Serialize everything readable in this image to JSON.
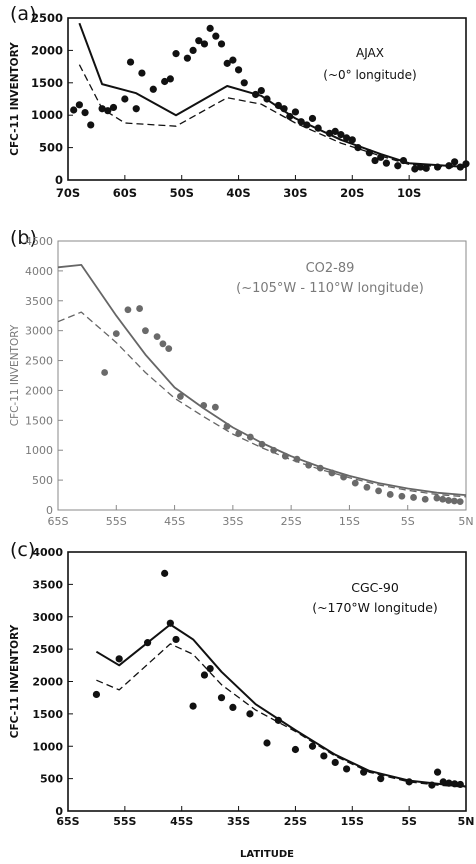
{
  "chart_data": [
    {
      "type": "line",
      "panel_label": "(a)",
      "title": "AJAX",
      "subtitle": "(~0° longitude)",
      "xlabel": "",
      "ylabel": "CFC-11 INVENTORY",
      "xlim": [
        -70,
        0
      ],
      "ylim": [
        0,
        2500
      ],
      "x_ticks": [
        -70,
        -60,
        -50,
        -40,
        -30,
        -20,
        -10
      ],
      "x_tick_labels": [
        "70S",
        "60S",
        "50S",
        "40S",
        "30S",
        "20S",
        "10S"
      ],
      "y_ticks": [
        0,
        500,
        1000,
        1500,
        2000,
        2500
      ],
      "y_tick_labels": [
        "0",
        "500",
        "1000",
        "1500",
        "2000",
        "2500"
      ],
      "grid": false,
      "style": "bold",
      "text_color": "#111111",
      "series": [
        {
          "kind": "solid",
          "x": [
            -68,
            -64,
            -58,
            -51,
            -42,
            -36,
            -30,
            -22,
            -15,
            -10,
            -5,
            0
          ],
          "y": [
            2420,
            1480,
            1340,
            1000,
            1450,
            1300,
            950,
            620,
            400,
            260,
            230,
            200
          ]
        },
        {
          "kind": "dashed",
          "x": [
            -68,
            -64,
            -60,
            -51,
            -42,
            -36,
            -30,
            -22,
            -15,
            -10,
            -5,
            0
          ],
          "y": [
            1780,
            1100,
            880,
            830,
            1270,
            1170,
            880,
            570,
            370,
            240,
            210,
            190
          ]
        },
        {
          "kind": "points",
          "x": [
            -69,
            -68,
            -67,
            -66,
            -64,
            -63,
            -62,
            -60,
            -59,
            -58,
            -57,
            -55,
            -53,
            -52,
            -51,
            -49,
            -48,
            -47,
            -46,
            -45,
            -44,
            -43,
            -42,
            -41,
            -40,
            -39,
            -37,
            -36,
            -35,
            -33,
            -32,
            -31,
            -30,
            -29,
            -28,
            -27,
            -26,
            -24,
            -23,
            -22,
            -21,
            -20,
            -19,
            -17,
            -16,
            -15,
            -14,
            -12,
            -11,
            -9,
            -8,
            -7,
            -5,
            -3,
            -2,
            -1,
            0
          ],
          "y": [
            1080,
            1160,
            1040,
            850,
            1100,
            1070,
            1120,
            1250,
            1820,
            1100,
            1650,
            1400,
            1520,
            1560,
            1950,
            1880,
            2000,
            2150,
            2100,
            2340,
            2220,
            2100,
            1800,
            1850,
            1700,
            1500,
            1320,
            1380,
            1250,
            1150,
            1100,
            980,
            1050,
            900,
            850,
            950,
            800,
            720,
            750,
            700,
            650,
            620,
            500,
            420,
            300,
            350,
            260,
            220,
            300,
            170,
            200,
            180,
            200,
            220,
            280,
            200,
            250
          ]
        }
      ]
    },
    {
      "type": "line",
      "panel_label": "(b)",
      "title": "CO2-89",
      "subtitle": "(~105°W - 110°W longitude)",
      "xlabel": "",
      "ylabel": "CFC-11 INVENTORY",
      "xlim": [
        -65,
        5
      ],
      "ylim": [
        0,
        4500
      ],
      "x_ticks": [
        -65,
        -55,
        -45,
        -35,
        -25,
        -15,
        -5,
        5
      ],
      "x_tick_labels": [
        "65S",
        "55S",
        "45S",
        "35S",
        "25S",
        "15S",
        "5S",
        "5N"
      ],
      "y_ticks": [
        0,
        500,
        1000,
        1500,
        2000,
        2500,
        3000,
        3500,
        4000,
        4500
      ],
      "y_tick_labels": [
        "0",
        "500",
        "1000",
        "1500",
        "2000",
        "2500",
        "3000",
        "3500",
        "4000",
        "4500"
      ],
      "grid": false,
      "style": "light",
      "text_color": "#7a7a7a",
      "series": [
        {
          "kind": "solid",
          "x": [
            -65,
            -61,
            -55,
            -50,
            -45,
            -40,
            -35,
            -30,
            -25,
            -20,
            -15,
            -10,
            -5,
            0,
            5
          ],
          "y": [
            4060,
            4100,
            3250,
            2600,
            2050,
            1700,
            1380,
            1120,
            900,
            720,
            570,
            450,
            360,
            290,
            250
          ]
        },
        {
          "kind": "dashed",
          "x": [
            -65,
            -61,
            -55,
            -50,
            -45,
            -40,
            -35,
            -30,
            -25,
            -20,
            -15,
            -10,
            -5,
            0,
            5
          ],
          "y": [
            3150,
            3310,
            2800,
            2300,
            1870,
            1560,
            1270,
            1040,
            840,
            680,
            540,
            420,
            330,
            260,
            220
          ]
        },
        {
          "kind": "points",
          "x": [
            -57,
            -55,
            -53,
            -51,
            -50,
            -48,
            -47,
            -46,
            -44,
            -40,
            -38,
            -36,
            -34,
            -32,
            -30,
            -28,
            -26,
            -24,
            -22,
            -20,
            -18,
            -16,
            -14,
            -12,
            -10,
            -8,
            -6,
            -4,
            -2,
            0,
            1,
            2,
            3,
            4
          ],
          "y": [
            2300,
            2950,
            3350,
            3370,
            3000,
            2900,
            2780,
            2700,
            1900,
            1750,
            1720,
            1400,
            1280,
            1220,
            1100,
            1000,
            900,
            850,
            750,
            700,
            620,
            550,
            450,
            380,
            320,
            260,
            230,
            210,
            180,
            200,
            180,
            160,
            150,
            140
          ]
        }
      ]
    },
    {
      "type": "line",
      "panel_label": "(c)",
      "title": "CGC-90",
      "subtitle": "(~170°W longitude)",
      "xlabel": "LATITUDE",
      "ylabel": "CFC-11 INVENTORY",
      "xlim": [
        -65,
        5
      ],
      "ylim": [
        0,
        4000
      ],
      "x_ticks": [
        -65,
        -55,
        -45,
        -35,
        -25,
        -15,
        -5,
        5
      ],
      "x_tick_labels": [
        "65S",
        "55S",
        "45S",
        "35S",
        "25S",
        "15S",
        "5S",
        "5N"
      ],
      "y_ticks": [
        0,
        500,
        1000,
        1500,
        2000,
        2500,
        3000,
        3500,
        4000
      ],
      "y_tick_labels": [
        "0",
        "500",
        "1000",
        "1500",
        "2000",
        "2500",
        "3000",
        "3500",
        "4000"
      ],
      "grid": false,
      "style": "bold",
      "text_color": "#111111",
      "series": [
        {
          "kind": "solid",
          "x": [
            -60,
            -56,
            -47,
            -43,
            -38,
            -32,
            -25,
            -18,
            -12,
            -5,
            0,
            3,
            5
          ],
          "y": [
            2460,
            2250,
            2880,
            2650,
            2150,
            1650,
            1250,
            870,
            620,
            470,
            420,
            390,
            380
          ]
        },
        {
          "kind": "dashed",
          "x": [
            -60,
            -56,
            -47,
            -43,
            -38,
            -32,
            -25,
            -18,
            -12,
            -5,
            0,
            3,
            5
          ],
          "y": [
            2020,
            1870,
            2580,
            2420,
            1950,
            1560,
            1230,
            850,
            600,
            450,
            400,
            380,
            370
          ]
        },
        {
          "kind": "points",
          "x": [
            -60,
            -56,
            -51,
            -48,
            -47,
            -46,
            -43,
            -41,
            -40,
            -38,
            -36,
            -33,
            -30,
            -28,
            -25,
            -22,
            -20,
            -18,
            -16,
            -13,
            -10,
            -5,
            -1,
            0,
            1,
            2,
            3,
            4
          ],
          "y": [
            1800,
            2350,
            2600,
            3670,
            2900,
            2650,
            1620,
            2100,
            2200,
            1750,
            1600,
            1500,
            1050,
            1400,
            950,
            1000,
            850,
            750,
            650,
            600,
            500,
            450,
            400,
            600,
            450,
            430,
            420,
            410
          ]
        }
      ]
    }
  ]
}
